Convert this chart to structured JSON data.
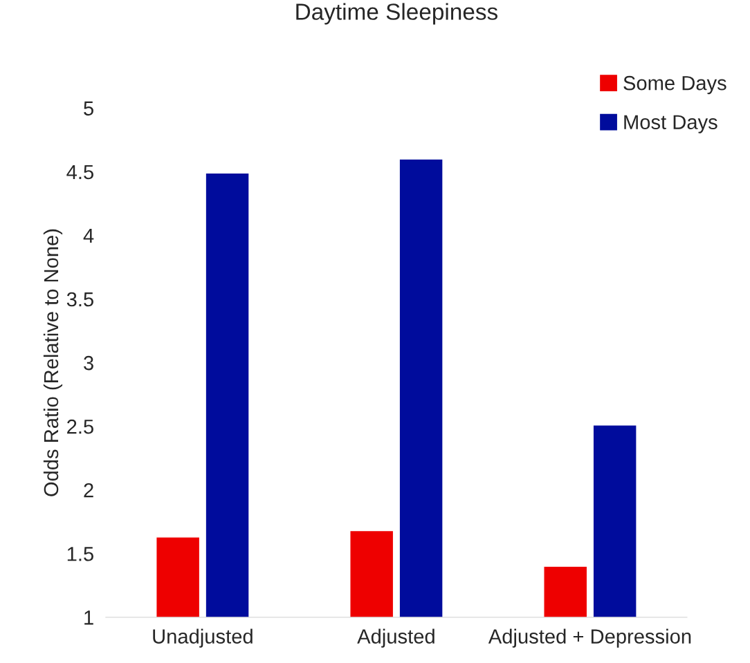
{
  "chart_data": {
    "type": "bar",
    "title": "Daytime Sleepiness",
    "ylabel": "Odds Ratio (Relative to None)",
    "categories": [
      "Unadjusted",
      "Adjusted",
      "Adjusted + Depression"
    ],
    "series": [
      {
        "name": "Some Days",
        "color": "#ee0000",
        "values": [
          1.63,
          1.68,
          1.4
        ]
      },
      {
        "name": "Most Days",
        "color": "#000c9c",
        "values": [
          4.49,
          4.6,
          2.51
        ]
      }
    ],
    "ylim": [
      1,
      5
    ],
    "yticks": [
      1,
      1.5,
      2,
      2.5,
      3,
      3.5,
      4,
      4.5,
      5
    ],
    "grid": false,
    "legend": "top right"
  }
}
